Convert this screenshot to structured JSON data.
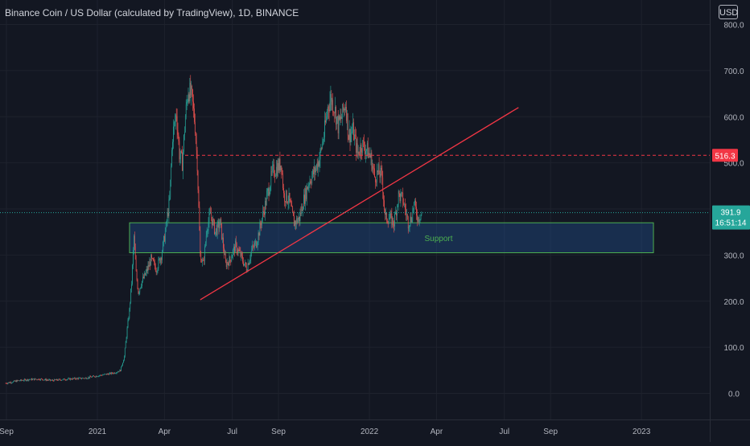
{
  "chart_data": {
    "type": "candlestick",
    "title": "Binance Coin / US Dollar (calculated by TradingView), 1D, BINANCE",
    "currency": "USD",
    "x_tick_labels": [
      "Sep",
      "2021",
      "Apr",
      "Jul",
      "Sep",
      "2022",
      "Apr",
      "Jul",
      "Sep",
      "2023"
    ],
    "y_tick_labels": [
      "800.0",
      "700.0",
      "600.0",
      "500.0",
      "400.0",
      "300.0",
      "200.0",
      "100.0",
      "0.0"
    ],
    "ylim": [
      -15,
      818
    ],
    "grid": true,
    "current_price": {
      "value": 391.9,
      "label": "391.9",
      "countdown": "16:51:14",
      "color": "#26a69a"
    },
    "resistance_line": {
      "value": 516.3,
      "label": "516.3",
      "color": "#f23645"
    },
    "support_zone": {
      "low": 305,
      "high": 370,
      "label": "Support",
      "color": "#4caf50"
    },
    "trendline": {
      "start": [
        "2021-05-19",
        203
      ],
      "end": [
        "2022-07-20",
        620
      ],
      "color": "#f23645"
    },
    "candles_approx": [
      [
        "2020-08-31",
        22
      ],
      [
        "2020-09-15",
        27
      ],
      [
        "2020-10-01",
        30
      ],
      [
        "2020-10-15",
        31
      ],
      [
        "2020-11-01",
        28
      ],
      [
        "2020-11-15",
        30
      ],
      [
        "2020-12-01",
        32
      ],
      [
        "2020-12-15",
        33
      ],
      [
        "2021-01-01",
        38
      ],
      [
        "2021-01-15",
        42
      ],
      [
        "2021-01-25",
        45
      ],
      [
        "2021-02-01",
        50
      ],
      [
        "2021-02-06",
        80
      ],
      [
        "2021-02-10",
        140
      ],
      [
        "2021-02-13",
        180
      ],
      [
        "2021-02-16",
        240
      ],
      [
        "2021-02-19",
        340
      ],
      [
        "2021-02-22",
        260
      ],
      [
        "2021-02-25",
        220
      ],
      [
        "2021-03-01",
        240
      ],
      [
        "2021-03-07",
        260
      ],
      [
        "2021-03-14",
        290
      ],
      [
        "2021-03-21",
        270
      ],
      [
        "2021-03-28",
        300
      ],
      [
        "2021-04-03",
        360
      ],
      [
        "2021-04-08",
        420
      ],
      [
        "2021-04-12",
        560
      ],
      [
        "2021-04-17",
        610
      ],
      [
        "2021-04-21",
        520
      ],
      [
        "2021-04-25",
        500
      ],
      [
        "2021-04-29",
        600
      ],
      [
        "2021-05-03",
        660
      ],
      [
        "2021-05-08",
        640
      ],
      [
        "2021-05-12",
        580
      ],
      [
        "2021-05-15",
        500
      ],
      [
        "2021-05-19",
        300
      ],
      [
        "2021-05-23",
        280
      ],
      [
        "2021-05-28",
        360
      ],
      [
        "2021-06-02",
        390
      ],
      [
        "2021-06-08",
        350
      ],
      [
        "2021-06-15",
        370
      ],
      [
        "2021-06-22",
        280
      ],
      [
        "2021-06-28",
        290
      ],
      [
        "2021-07-05",
        320
      ],
      [
        "2021-07-12",
        300
      ],
      [
        "2021-07-20",
        270
      ],
      [
        "2021-07-27",
        310
      ],
      [
        "2021-08-03",
        330
      ],
      [
        "2021-08-10",
        380
      ],
      [
        "2021-08-17",
        430
      ],
      [
        "2021-08-24",
        480
      ],
      [
        "2021-08-31",
        490
      ],
      [
        "2021-09-05",
        500
      ],
      [
        "2021-09-08",
        430
      ],
      [
        "2021-09-15",
        420
      ],
      [
        "2021-09-22",
        370
      ],
      [
        "2021-09-29",
        380
      ],
      [
        "2021-10-05",
        420
      ],
      [
        "2021-10-12",
        460
      ],
      [
        "2021-10-19",
        480
      ],
      [
        "2021-10-26",
        510
      ],
      [
        "2021-11-01",
        560
      ],
      [
        "2021-11-06",
        620
      ],
      [
        "2021-11-10",
        640
      ],
      [
        "2021-11-15",
        620
      ],
      [
        "2021-11-20",
        580
      ],
      [
        "2021-11-25",
        600
      ],
      [
        "2021-11-30",
        630
      ],
      [
        "2021-12-04",
        560
      ],
      [
        "2021-12-10",
        570
      ],
      [
        "2021-12-16",
        520
      ],
      [
        "2021-12-22",
        540
      ],
      [
        "2021-12-28",
        530
      ],
      [
        "2022-01-03",
        510
      ],
      [
        "2022-01-08",
        470
      ],
      [
        "2022-01-13",
        480
      ],
      [
        "2022-01-18",
        470
      ],
      [
        "2022-01-22",
        380
      ],
      [
        "2022-01-28",
        380
      ],
      [
        "2022-02-03",
        370
      ],
      [
        "2022-02-09",
        430
      ],
      [
        "2022-02-15",
        420
      ],
      [
        "2022-02-22",
        370
      ],
      [
        "2022-02-26",
        380
      ],
      [
        "2022-03-02",
        410
      ],
      [
        "2022-03-07",
        380
      ],
      [
        "2022-03-12",
        391.9
      ]
    ]
  }
}
